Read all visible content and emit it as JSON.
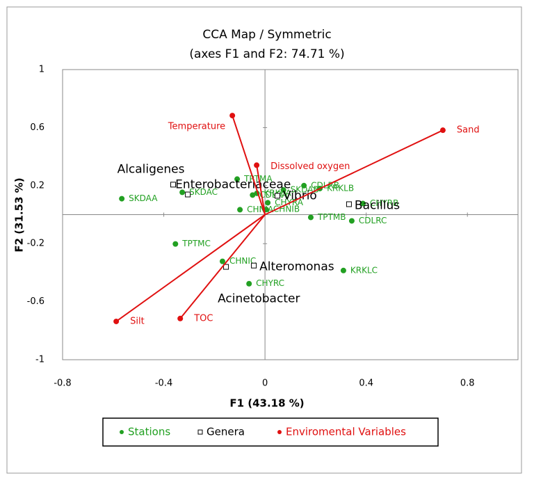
{
  "chart_data": {
    "type": "scatter",
    "title": "CCA Map / Symmetric",
    "subtitle": "(axes F1 and F2: 74.71 %)",
    "x_label": "F1 (43.18 %)",
    "y_label": "F2 (31.53 %)",
    "xlim": [
      -0.8,
      1.0
    ],
    "ylim": [
      -1,
      1
    ],
    "xticks": [
      -0.8,
      -0.4,
      0,
      0.4,
      0.8
    ],
    "yticks": [
      -1,
      -0.6,
      -0.2,
      0.2,
      0.6,
      1
    ],
    "legend": "bottom",
    "series": [
      {
        "name": "Stations",
        "color": "#22a022",
        "marker": "circle",
        "labels": [
          "SKDAA",
          "SKDAB",
          "SKDAC",
          "TPTMA",
          "TPTMB",
          "TPTMC",
          "CHNIA",
          "CHNIB",
          "CHNIC",
          "CHYRA",
          "CHYRB",
          "CHYRC",
          "KRKLA",
          "KRKLB",
          "KRKLC",
          "CDLRA",
          "CDLRB",
          "CDLRC"
        ],
        "x": [
          -0.566,
          0.073,
          -0.327,
          -0.11,
          0.181,
          -0.354,
          -0.099,
          0.005,
          -0.168,
          0.011,
          0.387,
          -0.063,
          -0.032,
          0.217,
          0.31,
          -0.049,
          0.154,
          0.343
        ],
        "values": [
          0.11,
          0.17,
          0.154,
          0.245,
          -0.019,
          -0.202,
          0.034,
          0.035,
          -0.322,
          0.082,
          0.077,
          -0.476,
          0.147,
          0.18,
          -0.385,
          0.135,
          0.2,
          -0.043
        ]
      },
      {
        "name": "Genera",
        "color": "#000000",
        "marker": "square",
        "labels": [
          "Alcaligenes",
          "Enterobacteriaceae",
          "Vibrio",
          "Bacillus",
          "Alteromonas",
          "Acinetobacter"
        ],
        "x": [
          -0.363,
          -0.305,
          0.049,
          0.332,
          -0.044,
          -0.154
        ],
        "values": [
          0.207,
          0.139,
          0.13,
          0.072,
          -0.351,
          -0.36
        ]
      },
      {
        "name": "Enviromental Variables",
        "color": "#e01010",
        "marker": "vector",
        "labels": [
          "Temperature",
          "Dissolved oxygen",
          "Sand",
          "Silt",
          "TOC"
        ],
        "x": [
          -0.129,
          -0.033,
          0.703,
          -0.588,
          -0.335
        ],
        "values": [
          0.683,
          0.341,
          0.582,
          -0.736,
          -0.716
        ]
      }
    ]
  }
}
